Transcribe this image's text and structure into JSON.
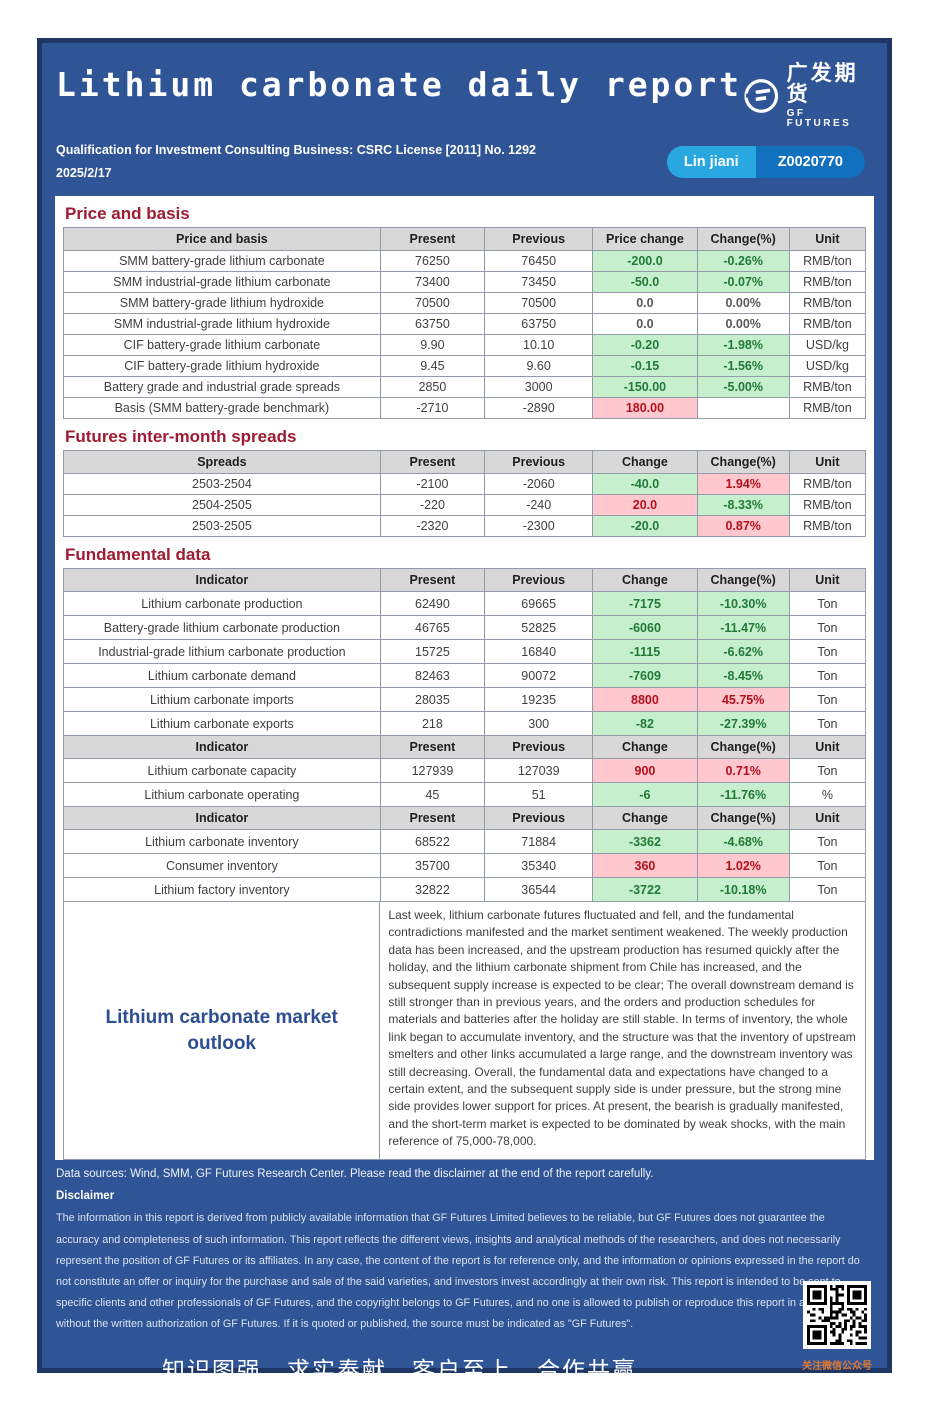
{
  "header": {
    "title": "Lithium carbonate  daily report",
    "logo": {
      "cn": "广发期货",
      "en": "GF FUTURES"
    },
    "qualification": "Qualification for Investment Consulting Business: CSRC License [2011] No. 1292",
    "date": "2025/2/17",
    "analyst": {
      "name": "Lin jiani",
      "license": "Z0020770"
    }
  },
  "colors": {
    "panel_bg": "#2F5597",
    "panel_border": "#1E3765",
    "section_title": "#9E1B32",
    "table_header_bg": "#D8D8D8",
    "decrease_bg": "#C6EFCE",
    "decrease_text": "#217A36",
    "increase_bg": "#FFC7CE",
    "increase_text": "#B3101B",
    "badge_name_bg": "#29A7E0",
    "badge_license_bg": "#1271BE",
    "qr_caption_text": "#E2772E"
  },
  "sections": {
    "price": {
      "title": "Price and basis",
      "columns": [
        "Price and basis",
        "Present",
        "Previous",
        "Price change",
        "Change(%)",
        "Unit"
      ],
      "rows": [
        {
          "label": "SMM battery-grade lithium carbonate",
          "present": "76250",
          "previous": "76450",
          "change": "-200.0",
          "change_pct": "-0.26%",
          "unit": "RMB/ton",
          "change_style": "down",
          "pct_style": "down"
        },
        {
          "label": "SMM industrial-grade lithium carbonate",
          "present": "73400",
          "previous": "73450",
          "change": "-50.0",
          "change_pct": "-0.07%",
          "unit": "RMB/ton",
          "change_style": "down",
          "pct_style": "down"
        },
        {
          "label": "SMM battery-grade lithium hydroxide",
          "present": "70500",
          "previous": "70500",
          "change": "0.0",
          "change_pct": "0.00%",
          "unit": "RMB/ton",
          "change_style": "flat",
          "pct_style": "flat"
        },
        {
          "label": "SMM industrial-grade lithium hydroxide",
          "present": "63750",
          "previous": "63750",
          "change": "0.0",
          "change_pct": "0.00%",
          "unit": "RMB/ton",
          "change_style": "flat",
          "pct_style": "flat"
        },
        {
          "label": "CIF battery-grade lithium carbonate",
          "present": "9.90",
          "previous": "10.10",
          "change": "-0.20",
          "change_pct": "-1.98%",
          "unit": "USD/kg",
          "change_style": "down",
          "pct_style": "down"
        },
        {
          "label": "CIF battery-grade lithium hydroxide",
          "present": "9.45",
          "previous": "9.60",
          "change": "-0.15",
          "change_pct": "-1.56%",
          "unit": "USD/kg",
          "change_style": "down",
          "pct_style": "down"
        },
        {
          "label": "Battery grade and industrial grade spreads",
          "present": "2850",
          "previous": "3000",
          "change": "-150.00",
          "change_pct": "-5.00%",
          "unit": "RMB/ton",
          "change_style": "down",
          "pct_style": "down"
        },
        {
          "label": "Basis (SMM battery-grade benchmark)",
          "present": "-2710",
          "previous": "-2890",
          "change": "180.00",
          "change_pct": "",
          "unit": "RMB/ton",
          "change_style": "up",
          "pct_style": "flat"
        }
      ]
    },
    "spreads": {
      "title": "Futures inter-month spreads",
      "columns": [
        "Spreads",
        "Present",
        "Previous",
        "Change",
        "Change(%)",
        "Unit"
      ],
      "rows": [
        {
          "label": "2503-2504",
          "present": "-2100",
          "previous": "-2060",
          "change": "-40.0",
          "change_pct": "1.94%",
          "unit": "RMB/ton",
          "change_style": "down",
          "pct_style": "up"
        },
        {
          "label": "2504-2505",
          "present": "-220",
          "previous": "-240",
          "change": "20.0",
          "change_pct": "-8.33%",
          "unit": "RMB/ton",
          "change_style": "up",
          "pct_style": "down"
        },
        {
          "label": "2503-2505",
          "present": "-2320",
          "previous": "-2300",
          "change": "-20.0",
          "change_pct": "0.87%",
          "unit": "RMB/ton",
          "change_style": "down",
          "pct_style": "up"
        }
      ]
    },
    "fundamental": {
      "title": "Fundamental data",
      "columns": [
        "Indicator",
        "Present",
        "Previous",
        "Change",
        "Change(%)",
        "Unit"
      ],
      "rows": [
        {
          "label": "Lithium carbonate production",
          "present": "62490",
          "previous": "69665",
          "change": "-7175",
          "change_pct": "-10.30%",
          "unit": "Ton",
          "change_style": "down",
          "pct_style": "down"
        },
        {
          "label": "Battery-grade  lithium carbonate production",
          "present": "46765",
          "previous": "52825",
          "change": "-6060",
          "change_pct": "-11.47%",
          "unit": "Ton",
          "change_style": "down",
          "pct_style": "down"
        },
        {
          "label": "Industrial-grade lithium carbonate production",
          "present": "15725",
          "previous": "16840",
          "change": "-1115",
          "change_pct": "-6.62%",
          "unit": "Ton",
          "change_style": "down",
          "pct_style": "down"
        },
        {
          "label": "Lithium carbonate demand",
          "present": "82463",
          "previous": "90072",
          "change": "-7609",
          "change_pct": "-8.45%",
          "unit": "Ton",
          "change_style": "down",
          "pct_style": "down"
        },
        {
          "label": "Lithium carbonate imports",
          "present": "28035",
          "previous": "19235",
          "change": "8800",
          "change_pct": "45.75%",
          "unit": "Ton",
          "change_style": "up",
          "pct_style": "up"
        },
        {
          "label": "Lithium carbonate exports",
          "present": "218",
          "previous": "300",
          "change": "-82",
          "change_pct": "-27.39%",
          "unit": "Ton",
          "change_style": "down",
          "pct_style": "down"
        },
        {
          "header": true
        },
        {
          "label": "Lithium carbonate capacity",
          "present": "127939",
          "previous": "127039",
          "change": "900",
          "change_pct": "0.71%",
          "unit": "Ton",
          "change_style": "up",
          "pct_style": "up"
        },
        {
          "label": "Lithium carbonate operating",
          "present": "45",
          "previous": "51",
          "change": "-6",
          "change_pct": "-11.76%",
          "unit": "%",
          "change_style": "down",
          "pct_style": "down"
        },
        {
          "header": true
        },
        {
          "label": "Lithium carbonate inventory",
          "present": "68522",
          "previous": "71884",
          "change": "-3362",
          "change_pct": "-4.68%",
          "unit": "Ton",
          "change_style": "down",
          "pct_style": "down"
        },
        {
          "label": "Consumer inventory",
          "present": "35700",
          "previous": "35340",
          "change": "360",
          "change_pct": "1.02%",
          "unit": "Ton",
          "change_style": "up",
          "pct_style": "up"
        },
        {
          "label": "Lithium factory inventory",
          "present": "32822",
          "previous": "36544",
          "change": "-3722",
          "change_pct": "-10.18%",
          "unit": "Ton",
          "change_style": "down",
          "pct_style": "down"
        }
      ]
    }
  },
  "outlook": {
    "title": "Lithium carbonate market outlook",
    "text": "Last week, lithium carbonate futures fluctuated and fell, and the fundamental contradictions manifested and the market sentiment weakened. The weekly production data has been increased, and the upstream production has resumed quickly after the holiday, and the lithium carbonate shipment from Chile has increased, and the subsequent supply increase is expected to be clear; The overall downstream demand is still stronger than in previous years, and the orders and production schedules for materials and batteries after the holiday are still stable. In terms of inventory, the whole link began to accumulate inventory, and the structure was that the inventory of upstream smelters and other links accumulated a large range, and the downstream inventory was still decreasing. Overall, the fundamental data and expectations have changed to a certain extent, and the subsequent supply side is under pressure, but the strong mine side provides lower support for prices. At present, the bearish is gradually manifested, and the short-term market is expected to be dominated by weak shocks, with the main reference of 75,000-78,000."
  },
  "footer": {
    "data_sources": "Data sources: Wind, SMM, GF Futures Research Center. Please read the disclaimer at the end of the report carefully.",
    "disclaimer_title": "Disclaimer",
    "disclaimer_text": "The information in this report is derived from publicly available information that GF Futures Limited believes to be reliable, but GF Futures does not guarantee the accuracy and completeness of such information. This report reflects the different views, insights and analytical methods of the researchers, and does not necessarily represent the position of GF Futures or its affiliates. In any case, the content of the report is for reference only, and the information or opinions expressed in the report do not constitute an offer or inquiry for the purchase and sale of the said varieties, and investors invest accordingly at their own risk. This report is intended to be sent to specific clients and other professionals of GF Futures, and the copyright belongs to GF Futures, and no one is allowed to publish or reproduce this report in any form without the written authorization of GF Futures. If it is quoted or published, the source must be indicated as \"GF Futures\".",
    "slogan": "知识图强，求实奉献，客户至上，合作共赢",
    "qr_caption": "关注微信公众号"
  }
}
